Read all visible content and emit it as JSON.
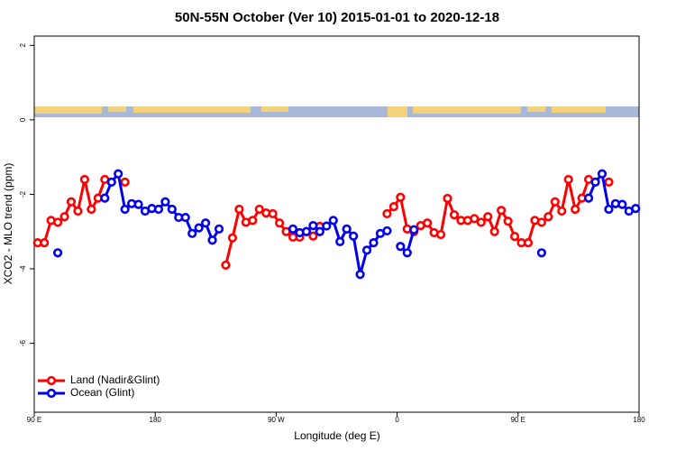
{
  "chart_data": {
    "type": "line",
    "title": "50N-55N October (Ver 10)   2015-01-01 to 2020-12-18",
    "x_label": "Longitude (deg E)",
    "y_label": "XCO2 - MLO trend (ppm)",
    "x": [
      92.5,
      97.5,
      102.5,
      107.5,
      112.5,
      117.5,
      122.5,
      127.5,
      132.5,
      137.5,
      142.5,
      147.5,
      152.5,
      157.5,
      162.5,
      167.5,
      172.5,
      177.5,
      182.5,
      187.5,
      192.5,
      197.5,
      202.5,
      207.5,
      212.5,
      217.5,
      222.5,
      227.5,
      232.5,
      237.5,
      242.5,
      247.5,
      252.5,
      257.5,
      262.5,
      267.5,
      272.5,
      277.5,
      282.5,
      287.5,
      292.5,
      297.5,
      302.5,
      307.5,
      312.5,
      317.5,
      322.5,
      327.5,
      332.5,
      337.5,
      342.5,
      347.5,
      352.5,
      357.5,
      362.5,
      367.5,
      372.5,
      377.5,
      382.5,
      387.5,
      392.5,
      397.5,
      402.5,
      407.5,
      412.5,
      417.5,
      422.5,
      427.5,
      432.5,
      437.5,
      442.5,
      447.5,
      452.5,
      457.5,
      462.5,
      467.5,
      472.5,
      477.5,
      482.5,
      487.5,
      492.5,
      497.5,
      502.5,
      507.5,
      512.5,
      517.5,
      522.5,
      527.5,
      532.5,
      537.5
    ],
    "series": [
      {
        "name": "Land (Nadir&Glint)",
        "color": "#ff0000",
        "values": [
          -3.3,
          -3.3,
          -2.7,
          -2.75,
          -2.6,
          -2.2,
          -2.45,
          -1.6,
          -2.4,
          -2.1,
          -1.6,
          null,
          null,
          -1.67,
          null,
          null,
          null,
          null,
          null,
          null,
          null,
          null,
          null,
          null,
          null,
          null,
          null,
          null,
          -3.9,
          -3.17,
          -2.4,
          -2.75,
          -2.7,
          -2.4,
          -2.5,
          -2.52,
          -2.77,
          -3.0,
          -3.15,
          -3.15,
          -3.0,
          -3.12,
          -2.86,
          null,
          null,
          null,
          null,
          null,
          null,
          null,
          null,
          null,
          -2.52,
          -2.33,
          -2.08,
          -2.93,
          -3.0,
          -2.84,
          -2.77,
          -3.03,
          -3.08,
          -2.11,
          -2.55,
          -2.7,
          -2.7,
          -2.65,
          -2.75,
          -2.6,
          -3.0,
          -2.43,
          -2.72,
          -3.13,
          -3.3,
          -3.3,
          -2.7,
          -2.75,
          -2.6,
          -2.2,
          -2.45,
          -1.6,
          -2.4,
          -2.1,
          -1.6,
          null,
          null,
          -1.67,
          null,
          null,
          null,
          null
        ]
      },
      {
        "name": "Ocean (Glint)",
        "color": "#0000ee",
        "values": [
          null,
          null,
          null,
          -3.57,
          null,
          null,
          null,
          null,
          null,
          null,
          -2.1,
          -1.67,
          -1.45,
          -2.4,
          -2.25,
          -2.27,
          -2.45,
          -2.38,
          -2.4,
          -2.2,
          -2.4,
          -2.62,
          -2.62,
          -3.05,
          -2.9,
          -2.77,
          -3.23,
          -2.93,
          null,
          null,
          null,
          null,
          null,
          null,
          null,
          null,
          null,
          null,
          -2.93,
          -3.03,
          -3.0,
          -2.84,
          -3.0,
          -2.85,
          -2.7,
          -3.27,
          -2.93,
          -3.12,
          -4.15,
          -3.5,
          -3.3,
          -3.05,
          -2.98,
          null,
          -3.4,
          -3.57,
          -2.95,
          null,
          null,
          null,
          null,
          null,
          null,
          null,
          null,
          null,
          null,
          null,
          null,
          null,
          null,
          null,
          null,
          null,
          null,
          -3.57,
          null,
          null,
          null,
          null,
          null,
          null,
          -2.1,
          -1.67,
          -1.45,
          -2.4,
          -2.25,
          -2.27,
          -2.45,
          -2.38
        ]
      }
    ],
    "xlim": [
      90,
      540
    ],
    "xticks": [
      90,
      180,
      {
        "value": 270,
        "label": "90 W"
      },
      {
        "value": 360,
        "label": "0"
      },
      {
        "value": 450,
        "label": "90 E"
      },
      {
        "value": 540,
        "label": "180"
      }
    ],
    "xtick_first_label": "90 E",
    "ylim": [
      -7.85,
      2.25
    ],
    "yticks": [
      2,
      0,
      -2,
      -4,
      -6
    ],
    "legend": "lower left"
  }
}
